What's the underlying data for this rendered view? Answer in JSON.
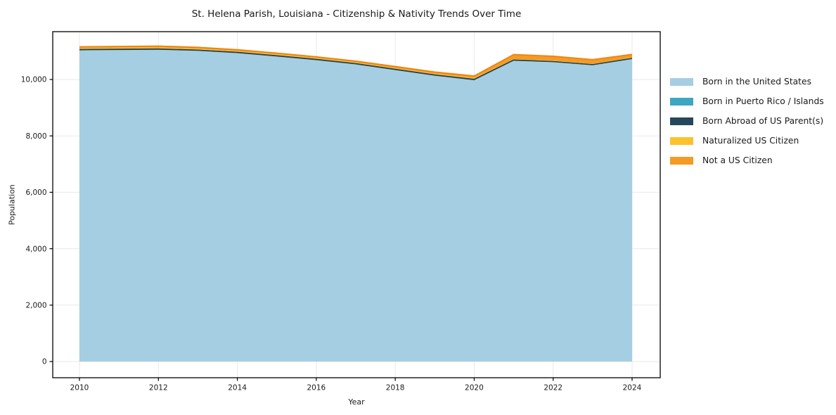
{
  "chart_data": {
    "type": "area",
    "stacked": true,
    "title": "St. Helena Parish, Louisiana - Citizenship & Nativity Trends Over Time",
    "xlabel": "Year",
    "ylabel": "Population",
    "x": [
      2010,
      2011,
      2012,
      2013,
      2014,
      2015,
      2016,
      2017,
      2018,
      2019,
      2020,
      2021,
      2022,
      2023,
      2024
    ],
    "series": [
      {
        "name": "Born in the United States",
        "color": "#a6cee3",
        "values": [
          11030,
          11040,
          11050,
          11010,
          10930,
          10810,
          10680,
          10530,
          10330,
          10130,
          9970,
          10660,
          10610,
          10500,
          10720
        ]
      },
      {
        "name": "Born in Puerto Rico / Islands",
        "color": "#3ea6c0",
        "values": [
          5,
          5,
          5,
          5,
          5,
          5,
          5,
          5,
          5,
          5,
          5,
          5,
          5,
          5,
          5
        ]
      },
      {
        "name": "Born Abroad of US Parent(s)",
        "color": "#26475b",
        "edge": "#1f3b4d",
        "edge_width": 0.9,
        "values": [
          35,
          35,
          35,
          35,
          35,
          35,
          35,
          35,
          35,
          35,
          40,
          35,
          30,
          30,
          30
        ]
      },
      {
        "name": "Naturalized US Citizen",
        "color": "#fcc22e",
        "values": [
          45,
          45,
          45,
          40,
          40,
          40,
          40,
          35,
          35,
          35,
          40,
          25,
          25,
          20,
          25
        ]
      },
      {
        "name": "Not a US Citizen",
        "color": "#f59a23",
        "edge": "#ed830e",
        "edge_width": 1.8,
        "values": [
          45,
          45,
          50,
          50,
          45,
          45,
          45,
          45,
          55,
          60,
          70,
          160,
          155,
          150,
          110
        ]
      }
    ],
    "xticks": {
      "values": [
        2010,
        2012,
        2014,
        2016,
        2018,
        2020,
        2022,
        2024
      ],
      "labels": [
        "2010",
        "2012",
        "2014",
        "2016",
        "2018",
        "2020",
        "2022",
        "2024"
      ]
    },
    "yticks": {
      "values": [
        0,
        2000,
        4000,
        6000,
        8000,
        10000
      ],
      "labels": [
        "0",
        "2,000",
        "4,000",
        "6,000",
        "8,000",
        "10,000"
      ]
    },
    "xlim": [
      2009.32,
      2024.71
    ],
    "ylim": [
      -575,
      11700
    ],
    "grid": true,
    "grid_color": "#e9e9e9",
    "legend_position": "right",
    "text_color": "#1a1a1a",
    "border_color": "#000000"
  }
}
